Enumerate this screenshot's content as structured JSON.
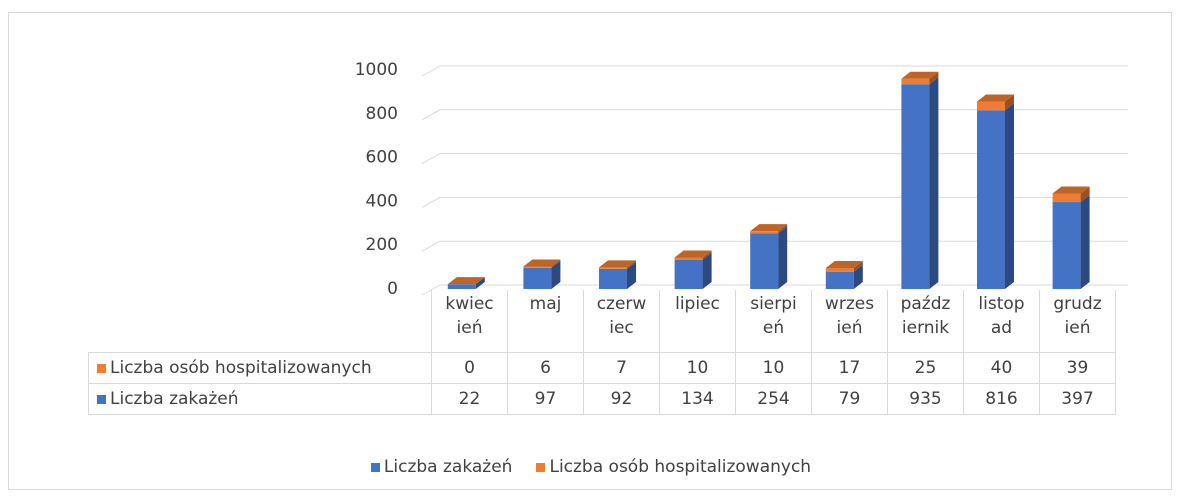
{
  "chart_data": {
    "type": "bar3d_stacked",
    "categories": [
      "kwiecień",
      "maj",
      "czerwiec",
      "lipiec",
      "sierpień",
      "wrzesień",
      "październik",
      "listopad",
      "grudzień"
    ],
    "series": [
      {
        "name": "Liczba zakażeń",
        "color": "#4472c4",
        "values": [
          22,
          97,
          92,
          134,
          254,
          79,
          935,
          816,
          397
        ]
      },
      {
        "name": "Liczba osób hospitalizowanych",
        "color": "#ed7d31",
        "values": [
          0,
          6,
          7,
          10,
          10,
          17,
          25,
          40,
          39
        ]
      }
    ],
    "ylim": [
      0,
      1000
    ],
    "yticks": [
      0,
      200,
      400,
      600,
      800,
      1000
    ],
    "grid": true
  }
}
